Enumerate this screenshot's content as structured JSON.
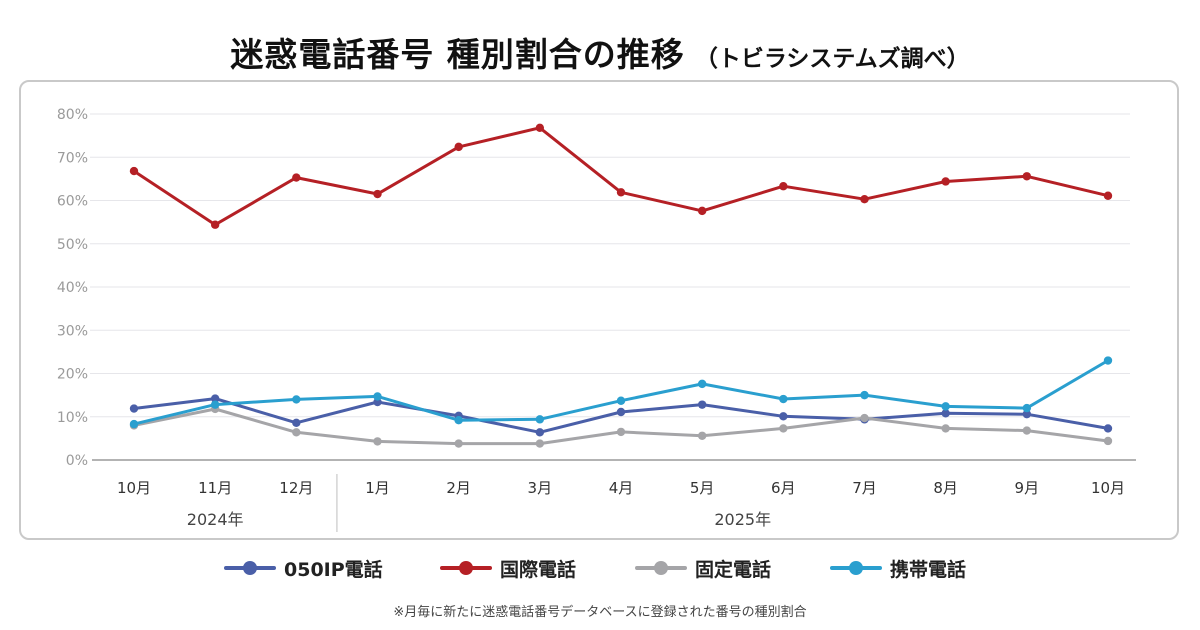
{
  "title": {
    "main": "迷惑電話番号 種別割合の推移",
    "sub": "（トビラシステムズ調べ）"
  },
  "footnote": "※月毎に新たに迷惑電話番号データベースに登録された番号の種別割合",
  "chart_data": {
    "type": "line",
    "categories": [
      "10月",
      "11月",
      "12月",
      "1月",
      "2月",
      "3月",
      "4月",
      "5月",
      "6月",
      "7月",
      "8月",
      "9月",
      "10月"
    ],
    "year_groups": [
      {
        "label": "2024年",
        "start": 0,
        "end": 2
      },
      {
        "label": "2025年",
        "start": 3,
        "end": 12
      }
    ],
    "ylim": [
      0,
      80
    ],
    "yticks": [
      0,
      10,
      20,
      30,
      40,
      50,
      60,
      70,
      80
    ],
    "ytick_labels": [
      "0%",
      "10%",
      "20%",
      "30%",
      "40%",
      "50%",
      "60%",
      "70%",
      "80%"
    ],
    "grid": true,
    "legend_position": "bottom",
    "series": [
      {
        "name": "050IP電話",
        "color": "#4a5fa8",
        "values": [
          11.9,
          14.2,
          8.6,
          13.4,
          10.2,
          6.4,
          11.1,
          12.8,
          10.1,
          9.4,
          10.8,
          10.6,
          7.3
        ]
      },
      {
        "name": "国際電話",
        "color": "#b52025",
        "values": [
          66.8,
          54.4,
          65.3,
          61.5,
          72.4,
          76.8,
          61.9,
          57.6,
          63.3,
          60.3,
          64.4,
          65.6,
          61.1
        ]
      },
      {
        "name": "固定電話",
        "color": "#a5a5a8",
        "values": [
          8.0,
          11.8,
          6.4,
          4.3,
          3.8,
          3.8,
          6.5,
          5.6,
          7.3,
          9.7,
          7.3,
          6.8,
          4.4
        ]
      },
      {
        "name": "携帯電話",
        "color": "#2a9fcf",
        "values": [
          8.3,
          12.8,
          14.0,
          14.7,
          9.2,
          9.4,
          13.7,
          17.6,
          14.1,
          15.0,
          12.4,
          12.0,
          23.0
        ]
      }
    ]
  }
}
